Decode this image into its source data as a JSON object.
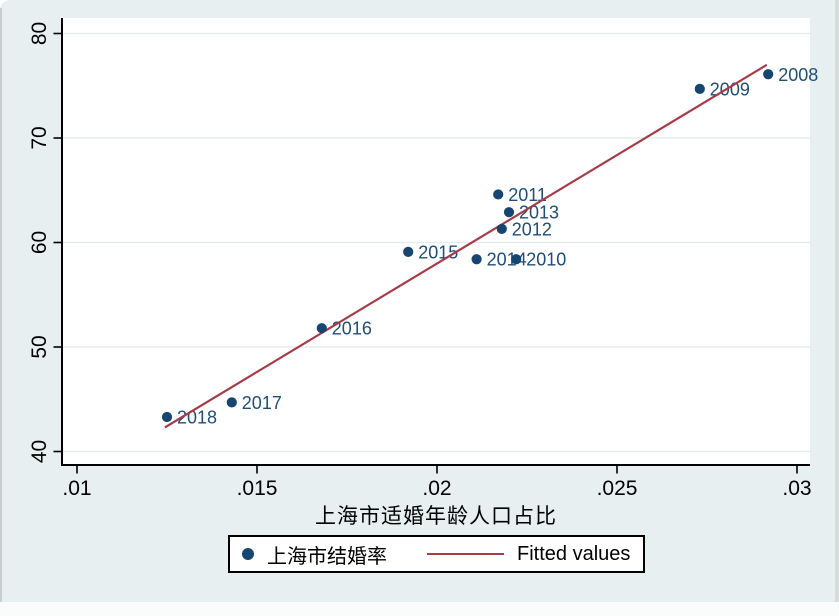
{
  "chart_data": {
    "type": "scatter",
    "title": "",
    "xlabel": "上海市适婚年龄人口占比",
    "ylabel": "",
    "xlim": [
      0.01,
      0.03
    ],
    "ylim": [
      40,
      80
    ],
    "grid": "horizontal",
    "legend_position": "bottom-center",
    "xticks": [
      {
        "value": 0.01,
        "label": ".01"
      },
      {
        "value": 0.015,
        "label": ".015"
      },
      {
        "value": 0.02,
        "label": ".02"
      },
      {
        "value": 0.025,
        "label": ".025"
      },
      {
        "value": 0.03,
        "label": ".03"
      }
    ],
    "yticks": [
      {
        "value": 40,
        "label": "40"
      },
      {
        "value": 50,
        "label": "50"
      },
      {
        "value": 60,
        "label": "60"
      },
      {
        "value": 70,
        "label": "70"
      },
      {
        "value": 80,
        "label": "80"
      }
    ],
    "series": [
      {
        "name": "上海市结婚率",
        "type": "scatter",
        "marker": "filled-circle",
        "color": "#164570",
        "label_color": "#1f4e79",
        "points": [
          {
            "label": "2008",
            "x": 0.0292,
            "y": 76.1
          },
          {
            "label": "2009",
            "x": 0.0273,
            "y": 74.7
          },
          {
            "label": "2011",
            "x": 0.0217,
            "y": 64.6
          },
          {
            "label": "2013",
            "x": 0.022,
            "y": 62.9
          },
          {
            "label": "2012",
            "x": 0.0218,
            "y": 61.3
          },
          {
            "label": "2015",
            "x": 0.0192,
            "y": 59.1
          },
          {
            "label": "2014",
            "x": 0.0211,
            "y": 58.4
          },
          {
            "label": "2010",
            "x": 0.0222,
            "y": 58.4
          },
          {
            "label": "2016",
            "x": 0.0168,
            "y": 51.8
          },
          {
            "label": "2017",
            "x": 0.0143,
            "y": 44.7
          },
          {
            "label": "2018",
            "x": 0.0125,
            "y": 43.3
          }
        ]
      },
      {
        "name": "Fitted values",
        "type": "line",
        "color": "#a63a46",
        "points": [
          {
            "x": 0.01244,
            "y": 42.3
          },
          {
            "x": 0.02916,
            "y": 77.0
          }
        ]
      }
    ]
  },
  "style_colors": {
    "graph_background": "#e8eff1",
    "plot_background": "#ffffff",
    "gridline": "#e2ecef",
    "axis": "#000000",
    "tick_label": "#000000"
  }
}
